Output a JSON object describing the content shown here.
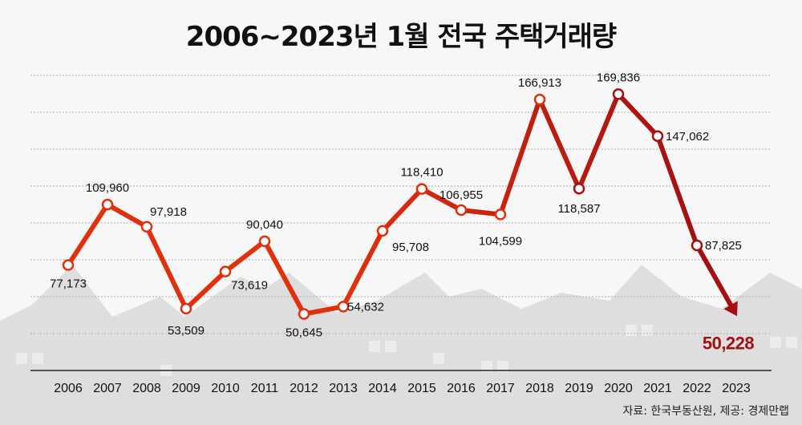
{
  "chart_data": {
    "type": "line",
    "title": "2006~2023년 1월 전국 주택거래량",
    "categories": [
      "2006",
      "2007",
      "2008",
      "2009",
      "2010",
      "2011",
      "2012",
      "2013",
      "2014",
      "2015",
      "2016",
      "2017",
      "2018",
      "2019",
      "2020",
      "2021",
      "2022",
      "2023"
    ],
    "series": [
      {
        "values": [
          77173,
          109960,
          97918,
          53509,
          73619,
          90040,
          50645,
          54632,
          95708,
          118410,
          106955,
          104599,
          166913,
          118587,
          169836,
          147062,
          87825,
          50228
        ]
      }
    ],
    "data_labels": [
      "77,173",
      "109,960",
      "97,918",
      "53,509",
      "73,619",
      "90,040",
      "50,645",
      "54,632",
      "95,708",
      "118,410",
      "106,955",
      "104,599",
      "166,913",
      "118,587",
      "169,836",
      "147,062",
      "87,825",
      "50,228"
    ],
    "ylim": [
      20000,
      180000
    ],
    "grid": true,
    "xlabel": "",
    "ylabel": "",
    "colors": {
      "line_start": "#e0300c",
      "line_end": "#a30f12",
      "highlight_label": "#a30f12",
      "grid": "#b8b8b8",
      "axis": "#555555",
      "background": "#f7f7f7",
      "houses": "#dedede"
    }
  },
  "source": "자료: 한국부동산원, 제공: 경제만랩"
}
